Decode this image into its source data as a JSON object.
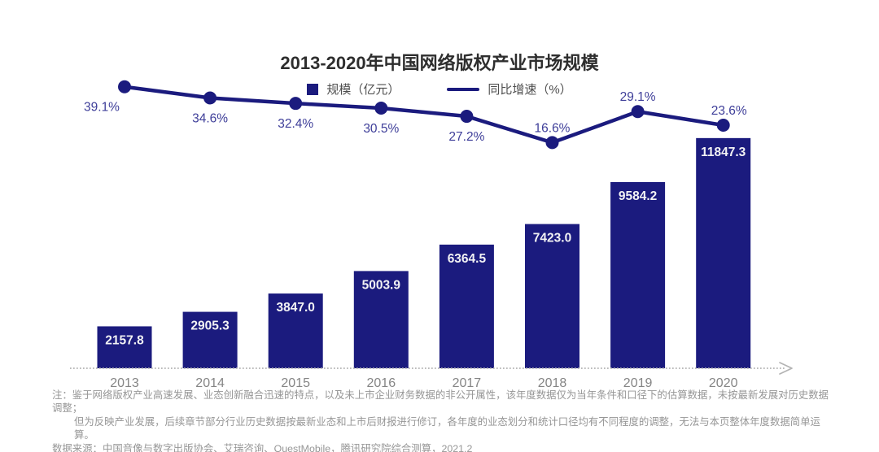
{
  "title": "2013-2020年中国网络版权产业市场规模",
  "legend": {
    "bar_label": "规模（亿元）",
    "line_label": "同比增速（%）"
  },
  "chart_data": {
    "type": "combo",
    "title": "2013-2020年中国网络版权产业市场规模",
    "categories": [
      "2013",
      "2014",
      "2015",
      "2016",
      "2017",
      "2018",
      "2019",
      "2020"
    ],
    "series": [
      {
        "name": "规模（亿元）",
        "type": "bar",
        "values": [
          2157.8,
          2905.3,
          3847.0,
          5003.9,
          6364.5,
          7423.0,
          9584.2,
          11847.3
        ]
      },
      {
        "name": "同比增速（%）",
        "type": "line",
        "values": [
          39.1,
          34.6,
          32.4,
          30.5,
          27.2,
          16.6,
          29.1,
          23.6
        ]
      }
    ],
    "bar_value_labels": [
      "2157.8",
      "2905.3",
      "3847.0",
      "5003.9",
      "6364.5",
      "7423.0",
      "9584.2",
      "11847.3"
    ],
    "line_value_labels": [
      "39.1%",
      "34.6%",
      "32.4%",
      "30.5%",
      "27.2%",
      "16.6%",
      "29.1%",
      "23.6%"
    ],
    "xlabel": "",
    "ylabel": "",
    "grid": false,
    "legend_position": "top",
    "colors": {
      "bar": "#1b1b7e",
      "line": "#1b1b7e",
      "dot": "#1b1b7e",
      "bar_label": "#f2f2f4",
      "line_label": "#3e3e99",
      "axis": "#b3b3b3",
      "tick_label": "#858585"
    }
  },
  "footnotes": {
    "line1": "注：鉴于网络版权产业高速发展、业态创新融合迅速的特点，以及未上市企业财务数据的非公开属性，该年度数据仅为当年条件和口径下的估算数据，未按最新发展对历史数据调整；",
    "line2": "但为反映产业发展，后续章节部分行业历史数据按最新业态和上市后财报进行修订，各年度的业态划分和统计口径均有不同程度的调整，无法与本页整体年度数据简单运算。",
    "line3": "数据来源：中国音像与数字出版协会、艾瑞咨询、QuestMobile，腾讯研究院综合测算，2021.2"
  }
}
